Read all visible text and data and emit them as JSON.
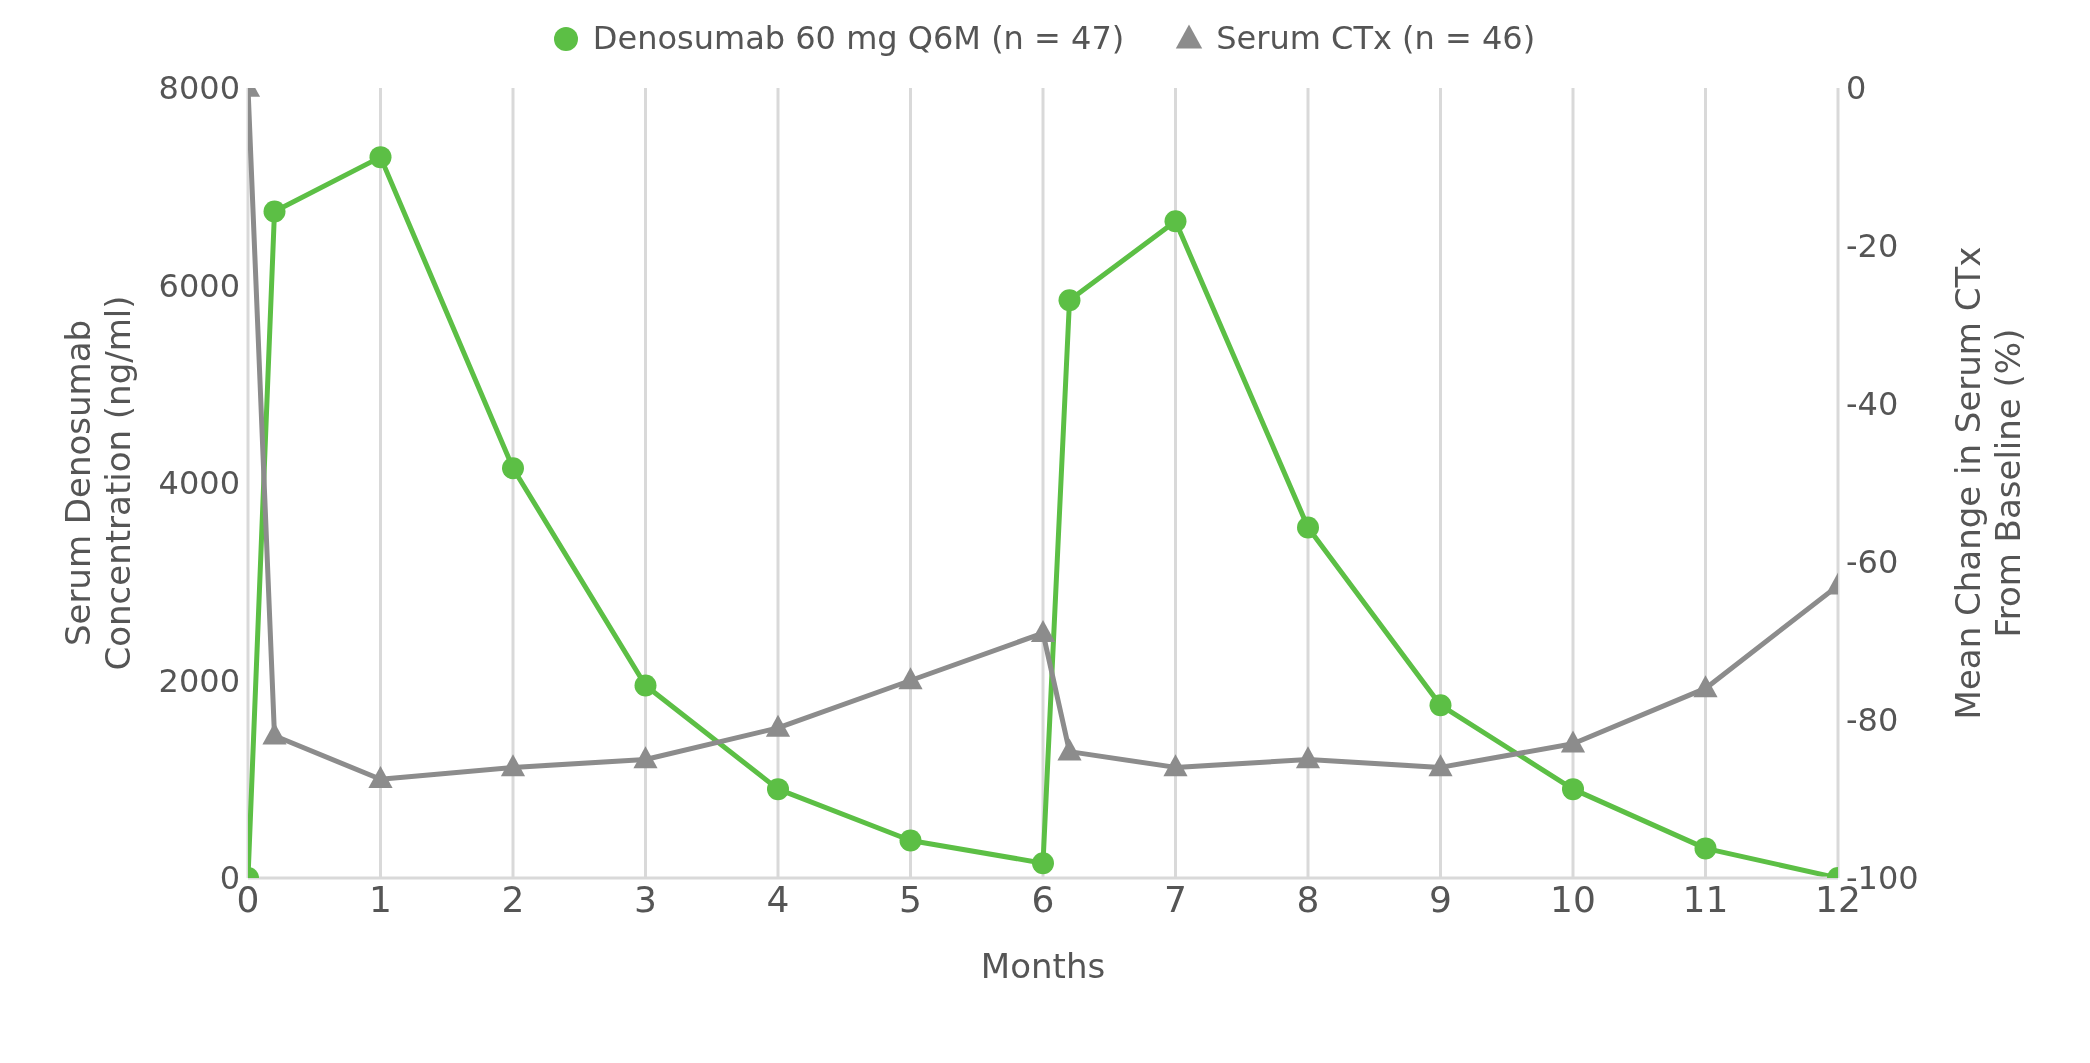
{
  "chart_data": {
    "type": "line",
    "xlabel": "Months",
    "ylabel": "Serum Denosumab\nConcentration (ng/ml)",
    "y2label": "Mean Change in Serum CTx\nFrom Baseline (%)",
    "xlim": [
      0,
      12
    ],
    "xticks": [
      0,
      1,
      2,
      3,
      4,
      5,
      6,
      7,
      8,
      9,
      10,
      11,
      12
    ],
    "ylim": [
      0,
      8000
    ],
    "yticks": [
      0,
      2000,
      4000,
      6000,
      8000
    ],
    "y2lim": [
      -100,
      0
    ],
    "y2ticks": [
      -100,
      -80,
      -60,
      -40,
      -20,
      0
    ],
    "grid": "x",
    "legend": "top",
    "line_style": "solid",
    "series": [
      {
        "name": "Denosumab 60 mg Q6M (n = 47)",
        "color": "#5cbf45",
        "marker": "circle",
        "x": [
          0,
          0.2,
          1,
          2,
          3,
          4,
          5,
          6,
          6.2,
          7,
          8,
          9,
          10,
          11,
          12
        ],
        "values": [
          0,
          6750,
          7300,
          4150,
          1950,
          900,
          380,
          150,
          5850,
          6650,
          3550,
          1750,
          900,
          300,
          0
        ]
      },
      {
        "name": "Serum CTx (n = 46)",
        "color": "#8c8c8c",
        "marker": "triangle",
        "axis": "y2",
        "x": [
          0,
          0.2,
          1,
          2,
          3,
          4,
          5,
          6,
          6.2,
          7,
          8,
          9,
          10,
          11,
          12
        ],
        "values": [
          0,
          -82,
          -87.5,
          -86,
          -85,
          -81,
          -75,
          -69,
          -84,
          -86,
          -85,
          -86,
          -83,
          -76,
          -63
        ]
      }
    ]
  }
}
